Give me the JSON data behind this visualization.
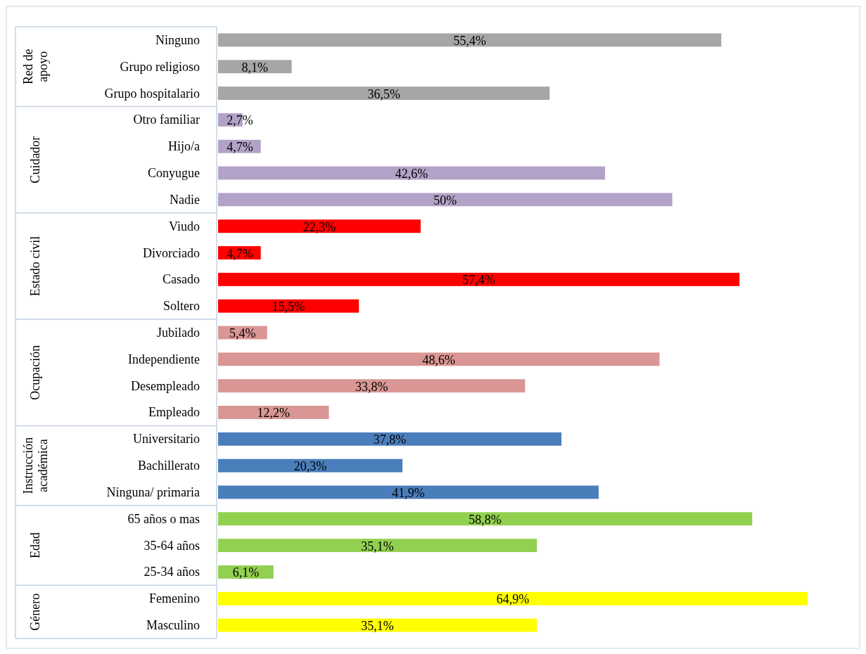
{
  "chart_data": {
    "type": "bar",
    "orientation": "horizontal",
    "categories": [
      "Ninguno",
      "Grupo religioso",
      "Grupo hospitalario",
      "Otro familiar",
      "Hijo/a",
      "Conyugue",
      "Nadie",
      "Viudo",
      "Divorciado",
      "Casado",
      "Soltero",
      "Jubilado",
      "Independiente",
      "Desempleado",
      "Empleado",
      "Universitario",
      "Bachillerato",
      "Ninguna/ primaria",
      "65 años o mas",
      "35-64 años",
      "25-34 años",
      "Femenino",
      "Masculino"
    ],
    "values": [
      55.4,
      8.1,
      36.5,
      2.7,
      4.7,
      42.6,
      50,
      22.3,
      4.7,
      57.4,
      15.5,
      5.4,
      48.6,
      33.8,
      12.2,
      37.8,
      20.3,
      41.9,
      58.8,
      35.1,
      6.1,
      64.9,
      35.1
    ],
    "value_labels": [
      "55,4%",
      "8,1%",
      "36,5%",
      "2,7%",
      "4,7%",
      "42,6%",
      "50%",
      "22,3%",
      "4,7%",
      "57,4%",
      "15,5%",
      "5,4%",
      "48,6%",
      "33,8%",
      "12,2%",
      "37,8%",
      "20,3%",
      "41,9%",
      "58,8%",
      "35,1%",
      "6,1%",
      "64,9%",
      "35,1%"
    ],
    "colors": [
      "#a6a6a6",
      "#a6a6a6",
      "#a6a6a6",
      "#b3a2c7",
      "#b3a2c7",
      "#b3a2c7",
      "#b3a2c7",
      "#ff0000",
      "#ff0000",
      "#ff0000",
      "#ff0000",
      "#d99694",
      "#d99694",
      "#d99694",
      "#d99694",
      "#4a7ebb",
      "#4a7ebb",
      "#4a7ebb",
      "#92d050",
      "#92d050",
      "#92d050",
      "#ffff00",
      "#ffff00"
    ],
    "annotations": [
      "Red de apoyo",
      "Cuidador",
      "Estado civil",
      "Ocupación",
      "Instrucción académica",
      "Edad",
      "Género"
    ]
  }
}
